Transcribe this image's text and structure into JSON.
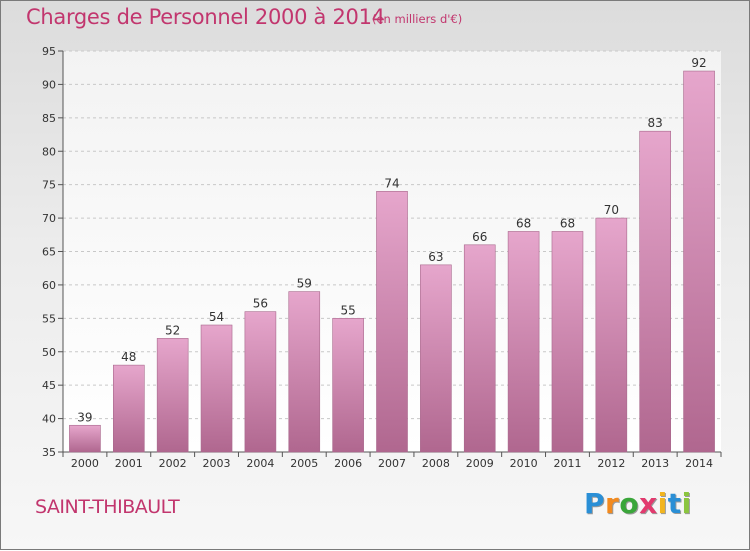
{
  "header": {
    "title": "Charges de Personnel 2000 à 2014",
    "unit_note": "(en milliers d'€)"
  },
  "footer": {
    "commune": "SAINT-THIBAULT",
    "logo_letters": [
      "P",
      "r",
      "o",
      "x",
      "i",
      "t",
      "i"
    ],
    "logo_colors": [
      "#2a8fd6",
      "#f28a1f",
      "#3aa63a",
      "#e23a6e",
      "#f2b51f",
      "#2a8fd6",
      "#8bc53f"
    ]
  },
  "colors": {
    "title": "#c2366e",
    "bar_top": "#e6a6cc",
    "bar_bottom": "#b0678f"
  },
  "chart_data": {
    "type": "bar",
    "categories": [
      "2000",
      "2001",
      "2002",
      "2003",
      "2004",
      "2005",
      "2006",
      "2007",
      "2008",
      "2009",
      "2010",
      "2011",
      "2012",
      "2013",
      "2014"
    ],
    "values": [
      39,
      48,
      52,
      54,
      56,
      59,
      55,
      74,
      63,
      66,
      68,
      68,
      70,
      83,
      92
    ],
    "ylim": [
      35,
      95
    ],
    "yticks": [
      35,
      40,
      45,
      50,
      55,
      60,
      65,
      70,
      75,
      80,
      85,
      90,
      95
    ],
    "grid": true,
    "xlabel": "",
    "ylabel": ""
  }
}
